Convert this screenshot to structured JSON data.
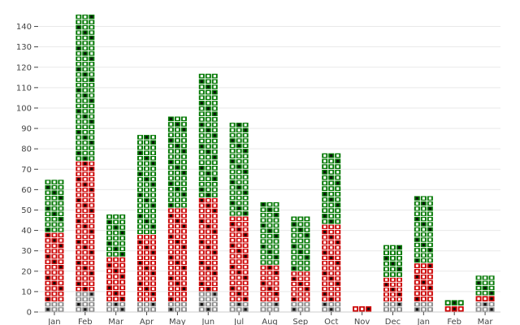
{
  "chart_data": {
    "type": "bar",
    "stacked": true,
    "style": "waffle",
    "title": "",
    "xlabel": "",
    "ylabel": "",
    "ylim": [
      0,
      145
    ],
    "yticks": [
      0,
      10,
      20,
      30,
      40,
      50,
      60,
      70,
      80,
      90,
      100,
      110,
      120,
      130,
      140
    ],
    "grid": true,
    "legend": "none",
    "categories": [
      "Jan",
      "Feb",
      "Mar",
      "Apr",
      "May",
      "Jun",
      "Jul",
      "Aug",
      "Sep",
      "Oct",
      "Nov",
      "Dec",
      "Jan",
      "Feb",
      "Mar"
    ],
    "series": [
      {
        "color": "#888888",
        "values": [
          5,
          10,
          5,
          5,
          5,
          10,
          5,
          5,
          5,
          5,
          0,
          5,
          5,
          0,
          5
        ]
      },
      {
        "color": "#cc0000",
        "values": [
          34,
          64,
          22,
          33,
          46,
          46,
          42,
          18,
          15,
          38,
          3,
          12,
          19,
          3,
          3
        ]
      },
      {
        "color": "#007700",
        "values": [
          26,
          72,
          21,
          49,
          45,
          61,
          46,
          31,
          27,
          35,
          0,
          16,
          33,
          3,
          10
        ]
      }
    ]
  }
}
